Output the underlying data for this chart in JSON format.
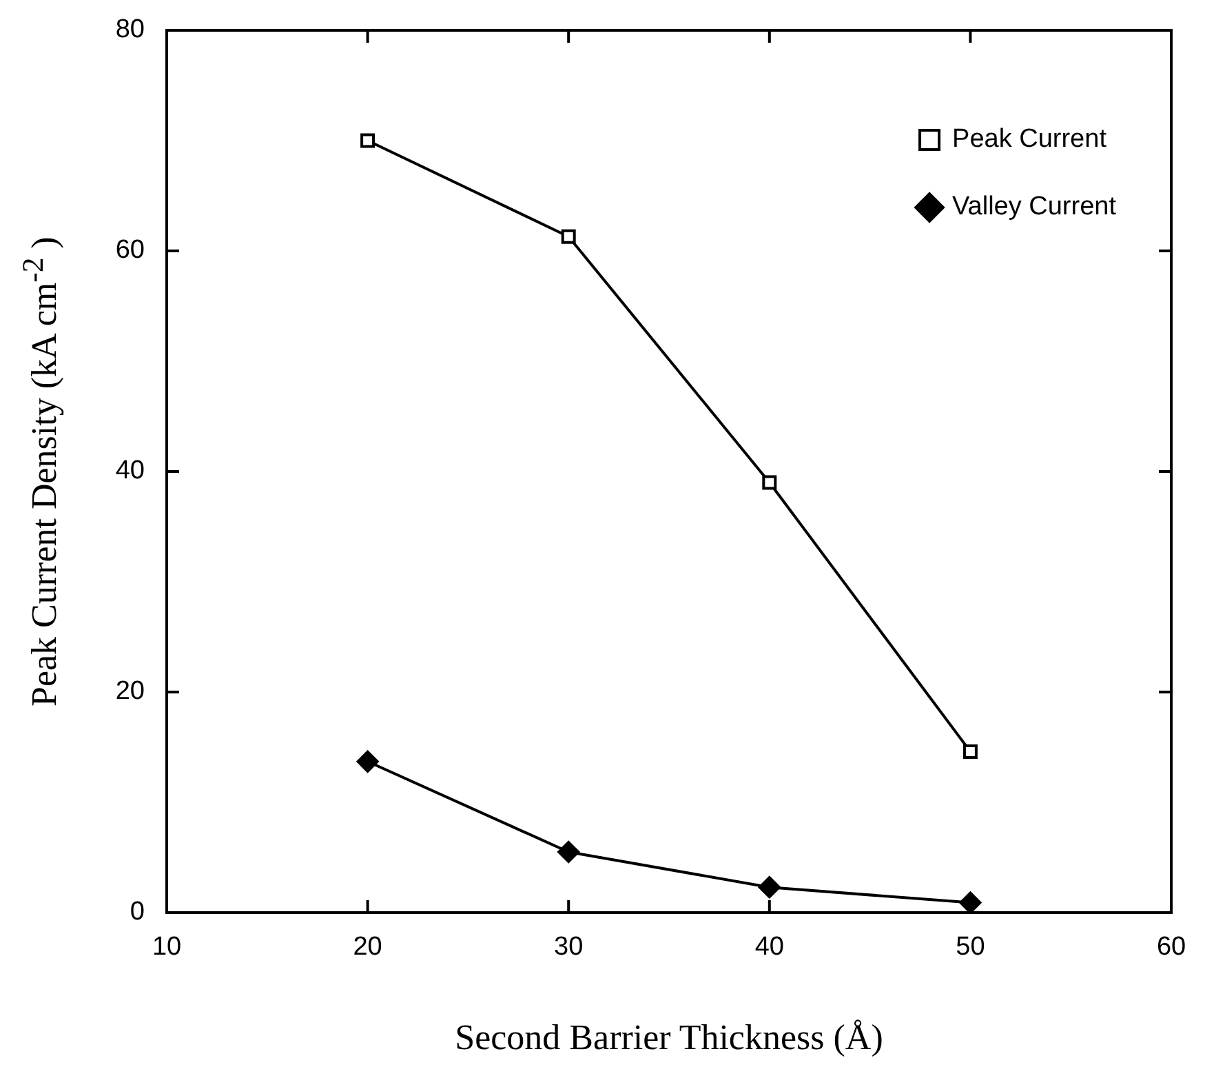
{
  "chart_data": {
    "type": "line",
    "xlabel": "Second Barrier Thickness (Å)",
    "ylabel": "Peak Current Density (kA cm$^{-2}$ )",
    "x": [
      20,
      30,
      40,
      50
    ],
    "series": [
      {
        "name": "Peak Current",
        "color": "#000000",
        "marker": "square",
        "values": [
          70,
          61.3,
          39,
          14.6
        ]
      },
      {
        "name": "Valley Current",
        "color": "#000000",
        "marker": "diamond",
        "values": [
          13.7,
          5.5,
          2.3,
          0.9
        ]
      }
    ],
    "xlim": [
      10,
      60
    ],
    "xticks": [
      10,
      20,
      30,
      40,
      50,
      60
    ],
    "ylim": [
      0,
      80
    ],
    "yticks": [
      0,
      20,
      40,
      60,
      80
    ],
    "grid": false,
    "legend": "top right",
    "line_style": "solid"
  }
}
